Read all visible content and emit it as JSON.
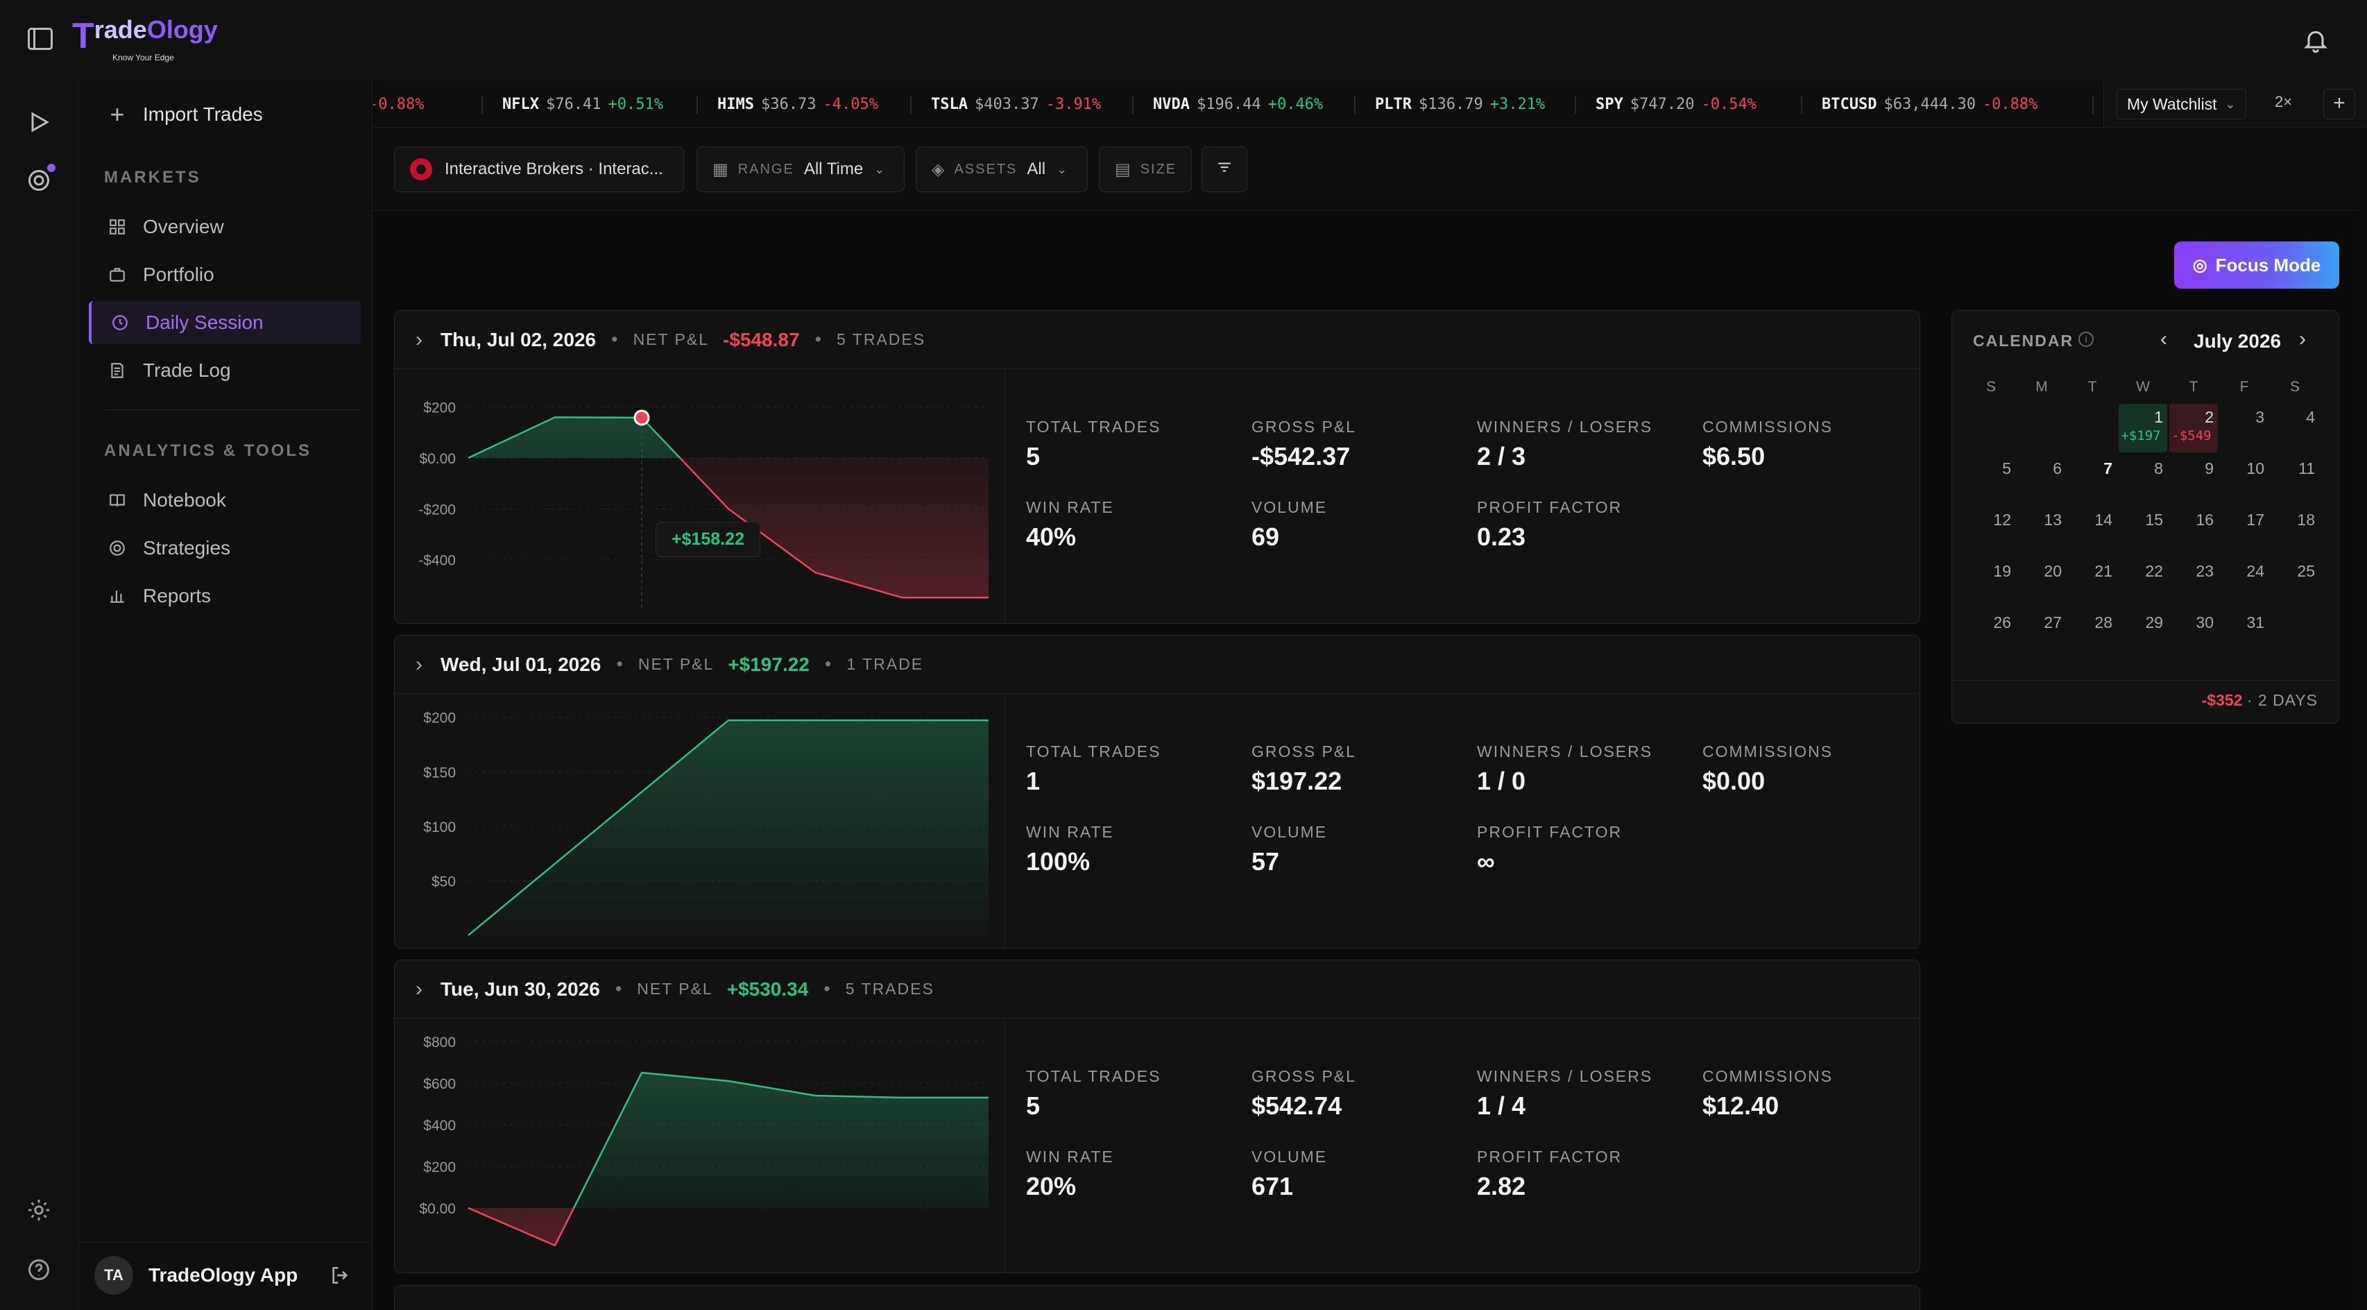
{
  "app": {
    "brand": "TradeOlogy",
    "brand_t": "T",
    "brand_rest_a": "rade",
    "brand_rest_b": "Ology",
    "tagline": "Know Your Edge"
  },
  "sidebar": {
    "import_label": "Import Trades",
    "markets_heading": "MARKETS",
    "markets": [
      {
        "label": "Overview",
        "icon": "grid-icon"
      },
      {
        "label": "Portfolio",
        "icon": "briefcase-icon"
      },
      {
        "label": "Daily Session",
        "icon": "session-icon",
        "active": true
      },
      {
        "label": "Trade Log",
        "icon": "log-icon"
      }
    ],
    "tools_heading": "ANALYTICS & TOOLS",
    "tools": [
      {
        "label": "Notebook",
        "icon": "book-icon"
      },
      {
        "label": "Strategies",
        "icon": "target-icon"
      },
      {
        "label": "Reports",
        "icon": "bar-chart-icon"
      }
    ],
    "user": {
      "initials": "TA",
      "name": "TradeOlogy App"
    }
  },
  "ticker": [
    {
      "sym": "",
      "price": "",
      "chg": "-0.88%",
      "dir": "neg",
      "clip": true
    },
    {
      "sym": "NFLX",
      "price": "$76.41",
      "chg": "+0.51%",
      "dir": "pos"
    },
    {
      "sym": "HIMS",
      "price": "$36.73",
      "chg": "-4.05%",
      "dir": "neg"
    },
    {
      "sym": "TSLA",
      "price": "$403.37",
      "chg": "-3.91%",
      "dir": "neg"
    },
    {
      "sym": "NVDA",
      "price": "$196.44",
      "chg": "+0.46%",
      "dir": "pos"
    },
    {
      "sym": "PLTR",
      "price": "$136.79",
      "chg": "+3.21%",
      "dir": "pos"
    },
    {
      "sym": "SPY",
      "price": "$747.20",
      "chg": "-0.54%",
      "dir": "neg"
    },
    {
      "sym": "BTCUSD",
      "price": "$63,444.30",
      "chg": "-0.88%",
      "dir": "neg"
    }
  ],
  "watchlist": {
    "label": "My Watchlist",
    "speed": "2×",
    "add": "+"
  },
  "filters": {
    "broker": "Interactive Brokers · Interac...",
    "range_label": "RANGE",
    "range_value": "All Time",
    "assets_label": "ASSETS",
    "assets_value": "All",
    "size_label": "SIZE"
  },
  "focus_mode": "Focus Mode",
  "labels": {
    "net_pnl": "NET P&L",
    "total_trades": "TOTAL TRADES",
    "gross_pnl": "GROSS P&L",
    "winners_losers": "WINNERS / LOSERS",
    "commissions": "COMMISSIONS",
    "win_rate": "WIN RATE",
    "volume": "VOLUME",
    "profit_factor": "PROFIT FACTOR"
  },
  "sessions": [
    {
      "date": "Thu, Jul 02, 2026",
      "net_pnl": "-$548.87",
      "dir": "neg",
      "trades_label": "5 TRADES",
      "total_trades": "5",
      "gross_pnl": "-$542.37",
      "winners_losers": "2 / 3",
      "commissions": "$6.50",
      "win_rate": "40%",
      "volume": "69",
      "profit_factor": "0.23",
      "tooltip": "+$158.22"
    },
    {
      "date": "Wed, Jul 01, 2026",
      "net_pnl": "+$197.22",
      "dir": "pos",
      "trades_label": "1 TRADE",
      "total_trades": "1",
      "gross_pnl": "$197.22",
      "winners_losers": "1 / 0",
      "commissions": "$0.00",
      "win_rate": "100%",
      "volume": "57",
      "profit_factor": "∞"
    },
    {
      "date": "Tue, Jun 30, 2026",
      "net_pnl": "+$530.34",
      "dir": "pos",
      "trades_label": "5 TRADES",
      "total_trades": "5",
      "gross_pnl": "$542.74",
      "winners_losers": "1 / 4",
      "commissions": "$12.40",
      "win_rate": "20%",
      "volume": "671",
      "profit_factor": "2.82"
    }
  ],
  "chart_data": [
    {
      "type": "line",
      "ylabels": [
        "$200",
        "$0.00",
        "-$200",
        "-$400"
      ],
      "ylim": [
        -600,
        300
      ],
      "values": [
        0,
        160,
        158.22,
        -200,
        -450,
        -548.87,
        -548.87
      ],
      "x": [
        0,
        1,
        2,
        3,
        4,
        5,
        6
      ],
      "highlight": 2
    },
    {
      "type": "line",
      "ylabels": [
        "$200",
        "$150",
        "$100",
        "$50"
      ],
      "ylim": [
        0,
        210
      ],
      "values": [
        0,
        197.22,
        197.22
      ],
      "x": [
        0,
        1,
        2
      ]
    },
    {
      "type": "line",
      "ylabels": [
        "$800",
        "$600",
        "$400",
        "$200",
        "$0.00"
      ],
      "ylim": [
        -250,
        850
      ],
      "values": [
        0,
        -180,
        650,
        610,
        540,
        530.34,
        530.34
      ],
      "x": [
        0,
        1,
        2,
        3,
        4,
        5,
        6
      ]
    }
  ],
  "calendar": {
    "title": "CALENDAR",
    "month": "July 2026",
    "dow": [
      "S",
      "M",
      "T",
      "W",
      "T",
      "F",
      "S"
    ],
    "days": [
      1,
      2,
      3,
      4,
      5,
      6,
      7,
      8,
      9,
      10,
      11,
      12,
      13,
      14,
      15,
      16,
      17,
      18,
      19,
      20,
      21,
      22,
      23,
      24,
      25,
      26,
      27,
      28,
      29,
      30,
      31
    ],
    "start_weekday": 3,
    "pnl": {
      "1": {
        "text": "+$197",
        "dir": "pos"
      },
      "2": {
        "text": "-$549",
        "dir": "neg"
      }
    },
    "total": "-$352",
    "days_label": "· 2 DAYS"
  },
  "colors": {
    "accent": "#8b5cf6",
    "pos": "#2fc27e",
    "neg": "#ef4455"
  }
}
